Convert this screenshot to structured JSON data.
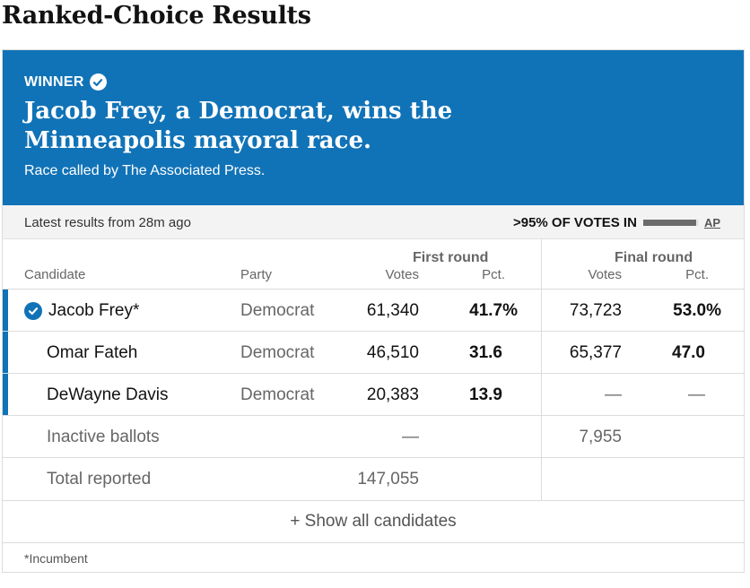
{
  "page_title": "Ranked-Choice Results",
  "banner": {
    "winner_label": "WINNER",
    "headline_line1": "Jacob Frey, a Democrat, wins the",
    "headline_line2": "Minneapolis mayoral race.",
    "called_text": "Race called by The Associated Press.",
    "background_color": "#1173b7"
  },
  "status": {
    "latest_text": "Latest results from 28m ago",
    "votes_in_label": ">95% OF VOTES IN",
    "votes_in_fraction": 0.95,
    "source_link": "AP"
  },
  "table": {
    "group_headers": {
      "first_round": "First round",
      "final_round": "Final round"
    },
    "headers": {
      "candidate": "Candidate",
      "party": "Party",
      "first_votes": "Votes",
      "first_pct": "Pct.",
      "final_votes": "Votes",
      "final_pct": "Pct."
    },
    "rows": [
      {
        "name": "Jacob Frey*",
        "party": "Democrat",
        "first_votes": "61,340",
        "first_pct": "41.7%",
        "final_votes": "73,723",
        "final_pct": "53.0%",
        "winner": true
      },
      {
        "name": "Omar Fateh",
        "party": "Democrat",
        "first_votes": "46,510",
        "first_pct": "31.6",
        "final_votes": "65,377",
        "final_pct": "47.0",
        "winner": false
      },
      {
        "name": "DeWayne Davis",
        "party": "Democrat",
        "first_votes": "20,383",
        "first_pct": "13.9",
        "final_votes": "—",
        "final_pct": "—",
        "winner": false
      }
    ],
    "inactive": {
      "label": "Inactive ballots",
      "first_votes": "—",
      "final_votes": "7,955"
    },
    "total": {
      "label": "Total reported",
      "first_votes": "147,055"
    }
  },
  "show_all_label": "+ Show all candidates",
  "footnote": "*Incumbent",
  "icons": {
    "winner_badge": "check-circle-icon"
  }
}
